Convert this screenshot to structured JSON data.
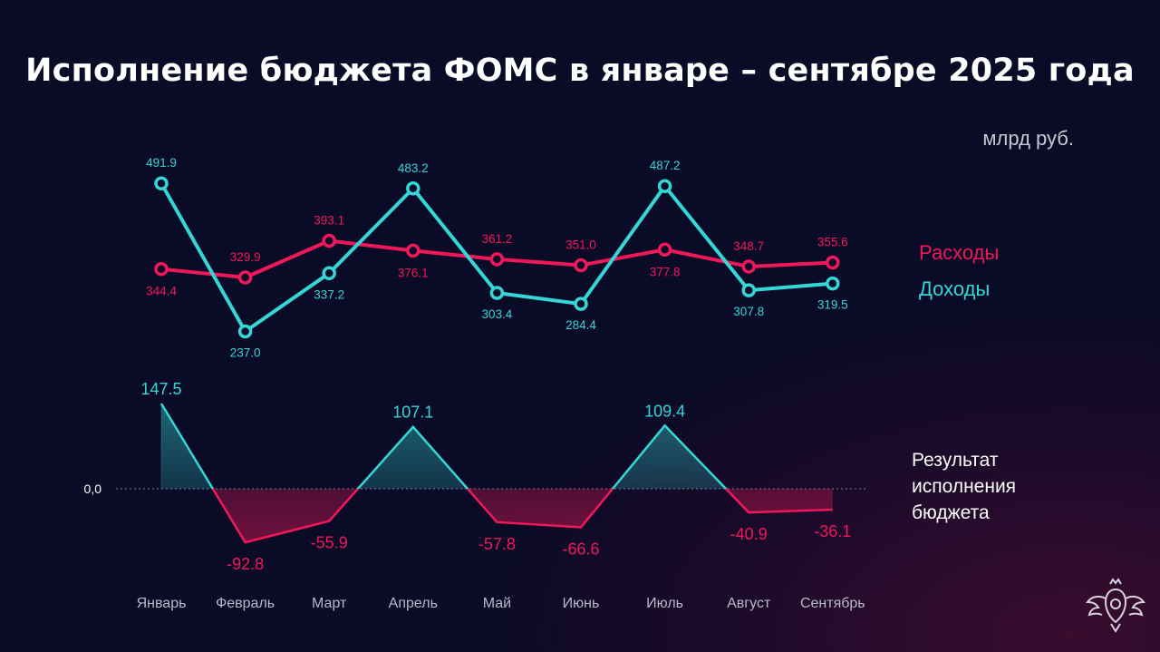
{
  "title": "Исполнение бюджета ФОМС в январе – сентябре 2025 года",
  "unit": "млрд руб.",
  "legend": {
    "expenses": "Расходы",
    "income": "Доходы"
  },
  "result_label": "Результат исполнения бюджета",
  "zero_label": "0,0",
  "colors": {
    "income": "#35d6d6",
    "expenses": "#f0185a",
    "background": "#0a0b26"
  },
  "chart_data": [
    {
      "type": "line",
      "categories": [
        "Январь",
        "Февраль",
        "Март",
        "Апрель",
        "Май",
        "Июнь",
        "Июль",
        "Август",
        "Сентябрь"
      ],
      "series": [
        {
          "name": "Расходы",
          "values": [
            344.4,
            329.9,
            393.1,
            376.1,
            361.2,
            351.0,
            377.8,
            348.7,
            355.6
          ],
          "labels": [
            "344.4",
            "329.9",
            "393.1",
            "376.1",
            "361.2",
            "351.0",
            "377.8",
            "348.7",
            "355.6"
          ]
        },
        {
          "name": "Доходы",
          "values": [
            491.9,
            237.0,
            337.2,
            483.2,
            303.4,
            284.4,
            487.2,
            307.8,
            319.5
          ],
          "labels": [
            "491.9",
            "237.0",
            "337.2",
            "483.2",
            "303.4",
            "284.4",
            "487.2",
            "307.8",
            "319.5"
          ]
        }
      ]
    },
    {
      "type": "area",
      "categories": [
        "Январь",
        "Февраль",
        "Март",
        "Апрель",
        "Май",
        "Июнь",
        "Июль",
        "Август",
        "Сентябрь"
      ],
      "series": [
        {
          "name": "Результат исполнения бюджета",
          "values": [
            147.5,
            -92.8,
            -55.9,
            107.1,
            -57.8,
            -66.6,
            109.4,
            -40.9,
            -36.1
          ],
          "labels": [
            "147.5",
            "-92.8",
            "-55.9",
            "107.1",
            "-57.8",
            "-66.6",
            "109.4",
            "-40.9",
            "-36.1"
          ]
        }
      ],
      "baseline": 0
    }
  ]
}
